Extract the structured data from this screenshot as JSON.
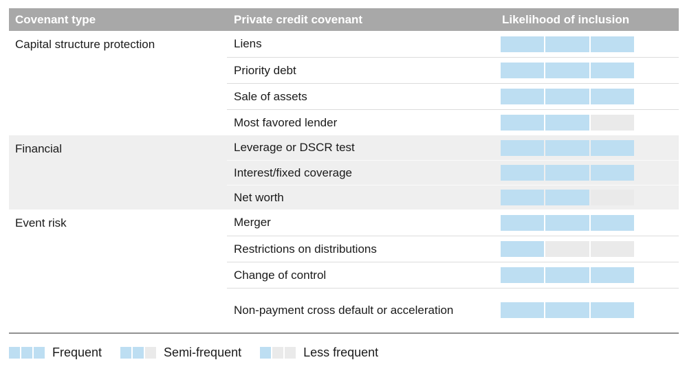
{
  "table": {
    "headers": [
      "Covenant type",
      "Private credit covenant",
      "Likelihood of inclusion"
    ],
    "sections": [
      {
        "type": "Capital structure protection",
        "rows": [
          {
            "covenant": "Liens",
            "rating": 3,
            "likelihood": "Frequent"
          },
          {
            "covenant": "Priority debt",
            "rating": 3,
            "likelihood": "Frequent"
          },
          {
            "covenant": "Sale of assets",
            "rating": 3,
            "likelihood": "Frequent"
          },
          {
            "covenant": "Most favored lender",
            "rating": 2,
            "likelihood": "Semi-frequent"
          }
        ]
      },
      {
        "type": "Financial",
        "rows": [
          {
            "covenant": "Leverage or DSCR test",
            "rating": 3,
            "likelihood": "Frequent"
          },
          {
            "covenant": "Interest/fixed coverage",
            "rating": 3,
            "likelihood": "Frequent"
          },
          {
            "covenant": "Net worth",
            "rating": 2,
            "likelihood": "Semi-frequent"
          }
        ]
      },
      {
        "type": "Event risk",
        "rows": [
          {
            "covenant": "Merger",
            "rating": 3,
            "likelihood": "Frequent"
          },
          {
            "covenant": "Restrictions on distributions",
            "rating": 1,
            "likelihood": "Less frequent"
          },
          {
            "covenant": "Change of control",
            "rating": 3,
            "likelihood": "Frequent"
          },
          {
            "covenant": "Non-payment cross default or acceleration",
            "rating": 3,
            "likelihood": "Frequent"
          }
        ]
      }
    ]
  },
  "legend": [
    {
      "label": "Frequent",
      "rating": 3
    },
    {
      "label": "Semi-frequent",
      "rating": 2
    },
    {
      "label": "Less frequent",
      "rating": 1
    }
  ],
  "colors": {
    "filled_segment": "#bddef2",
    "empty_segment": "#eaeaea",
    "header_bg": "#a8a8a8",
    "section_alt_bg": "#efefef"
  },
  "chart_data": {
    "type": "table",
    "columns": [
      "Covenant type",
      "Private credit covenant",
      "Likelihood of inclusion"
    ],
    "rows": [
      [
        "Capital structure protection",
        "Liens",
        "Frequent"
      ],
      [
        "Capital structure protection",
        "Priority debt",
        "Frequent"
      ],
      [
        "Capital structure protection",
        "Sale of assets",
        "Frequent"
      ],
      [
        "Capital structure protection",
        "Most favored lender",
        "Semi-frequent"
      ],
      [
        "Financial",
        "Leverage or DSCR test",
        "Frequent"
      ],
      [
        "Financial",
        "Interest/fixed coverage",
        "Frequent"
      ],
      [
        "Financial",
        "Net worth",
        "Semi-frequent"
      ],
      [
        "Event risk",
        "Merger",
        "Frequent"
      ],
      [
        "Event risk",
        "Restrictions on distributions",
        "Less frequent"
      ],
      [
        "Event risk",
        "Change of control",
        "Frequent"
      ],
      [
        "Event risk",
        "Non-payment cross default or acceleration",
        "Frequent"
      ]
    ],
    "likelihood_scale": {
      "segments_total": 3,
      "Frequent": 3,
      "Semi-frequent": 2,
      "Less frequent": 1
    },
    "legend_entries": [
      "Frequent",
      "Semi-frequent",
      "Less frequent"
    ],
    "legend_position": "bottom"
  }
}
